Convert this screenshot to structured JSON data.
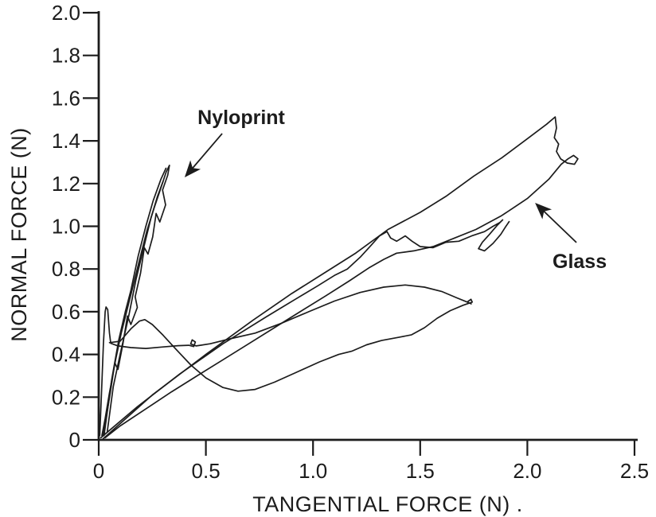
{
  "figure": {
    "description": "Scanned line plot of normal force versus tangential force for Nyloprint and Glass surfaces",
    "background_color": "#ffffff",
    "ink_color": "#1c1c1c"
  },
  "chart_data": {
    "type": "line",
    "title": "",
    "xlabel": "TANGENTIAL FORCE (N) .",
    "ylabel": "NORMAL FORCE (N)",
    "xlim": [
      0,
      2.5
    ],
    "ylim": [
      0,
      2.0
    ],
    "grid": false,
    "legend_position": "none (inline arrow annotations)",
    "x_ticks": [
      {
        "value": 0.0,
        "label": "0"
      },
      {
        "value": 0.5,
        "label": "0.5"
      },
      {
        "value": 1.0,
        "label": "1.0"
      },
      {
        "value": 1.5,
        "label": "1.5"
      },
      {
        "value": 2.0,
        "label": "2.0"
      },
      {
        "value": 2.5,
        "label": "2.5"
      }
    ],
    "y_ticks": [
      {
        "value": 0.0,
        "label": "0"
      },
      {
        "value": 0.2,
        "label": "0.2"
      },
      {
        "value": 0.4,
        "label": "0.4"
      },
      {
        "value": 0.6,
        "label": "0.6"
      },
      {
        "value": 0.8,
        "label": "0.8"
      },
      {
        "value": 1.0,
        "label": "1.0"
      },
      {
        "value": 1.2,
        "label": "1.2"
      },
      {
        "value": 1.4,
        "label": "1.4"
      },
      {
        "value": 1.6,
        "label": "1.6"
      },
      {
        "value": 1.8,
        "label": "1.8"
      },
      {
        "value": 2.0,
        "label": "2.0"
      }
    ],
    "annotations": [
      {
        "text": "Nyloprint",
        "text_x": 0.665,
        "text_y": 1.512,
        "arrow_from_x": 0.576,
        "arrow_from_y": 1.434,
        "arrow_to_x": 0.401,
        "arrow_to_y": 1.229
      },
      {
        "text": "Glass",
        "text_x": 2.244,
        "text_y": 0.838,
        "arrow_from_x": 2.229,
        "arrow_from_y": 0.924,
        "arrow_to_x": 2.036,
        "arrow_to_y": 1.11
      }
    ],
    "series": [
      {
        "name": "nyloprint-strand-1",
        "surface": "Nyloprint",
        "points": [
          [
            0.015,
            0.02
          ],
          [
            0.03,
            0.1
          ],
          [
            0.05,
            0.22
          ],
          [
            0.08,
            0.38
          ],
          [
            0.105,
            0.5
          ],
          [
            0.13,
            0.6
          ],
          [
            0.16,
            0.72
          ],
          [
            0.19,
            0.84
          ],
          [
            0.225,
            0.98
          ],
          [
            0.26,
            1.09
          ],
          [
            0.29,
            1.18
          ],
          [
            0.315,
            1.255
          ],
          [
            0.33,
            1.285
          ]
        ]
      },
      {
        "name": "nyloprint-strand-2",
        "surface": "Nyloprint",
        "points": [
          [
            0.33,
            1.285
          ],
          [
            0.322,
            1.24
          ],
          [
            0.298,
            1.17
          ],
          [
            0.312,
            1.1
          ],
          [
            0.285,
            1.02
          ],
          [
            0.268,
            1.06
          ],
          [
            0.252,
            0.95
          ],
          [
            0.23,
            0.87
          ],
          [
            0.213,
            0.9
          ],
          [
            0.195,
            0.78
          ],
          [
            0.17,
            0.67
          ],
          [
            0.18,
            0.62
          ],
          [
            0.15,
            0.54
          ],
          [
            0.134,
            0.58
          ],
          [
            0.113,
            0.45
          ],
          [
            0.09,
            0.33
          ],
          [
            0.075,
            0.36
          ],
          [
            0.054,
            0.22
          ],
          [
            0.034,
            0.1
          ],
          [
            0.02,
            0.02
          ]
        ]
      },
      {
        "name": "nyloprint-strand-3",
        "surface": "Nyloprint",
        "points": [
          [
            0.025,
            0.02
          ],
          [
            0.06,
            0.28
          ],
          [
            0.094,
            0.47
          ],
          [
            0.124,
            0.6
          ],
          [
            0.15,
            0.7
          ],
          [
            0.184,
            0.86
          ],
          [
            0.22,
            1.0
          ],
          [
            0.254,
            1.12
          ],
          [
            0.29,
            1.22
          ],
          [
            0.314,
            1.272
          ]
        ]
      },
      {
        "name": "nyloprint-strand-4",
        "surface": "Nyloprint",
        "points": [
          [
            0.04,
            0.04
          ],
          [
            0.068,
            0.25
          ],
          [
            0.1,
            0.4
          ],
          [
            0.14,
            0.58
          ],
          [
            0.174,
            0.75
          ],
          [
            0.21,
            0.9
          ],
          [
            0.244,
            1.04
          ],
          [
            0.274,
            1.14
          ],
          [
            0.3,
            1.21
          ]
        ]
      },
      {
        "name": "glass-spike-plateau",
        "surface": "Glass",
        "points": [
          [
            0.005,
            0.02
          ],
          [
            0.013,
            0.22
          ],
          [
            0.022,
            0.45
          ],
          [
            0.03,
            0.6
          ],
          [
            0.034,
            0.622
          ],
          [
            0.042,
            0.61
          ],
          [
            0.05,
            0.5
          ],
          [
            0.056,
            0.452
          ],
          [
            0.09,
            0.44
          ],
          [
            0.15,
            0.432
          ],
          [
            0.22,
            0.428
          ],
          [
            0.3,
            0.435
          ],
          [
            0.37,
            0.441
          ],
          [
            0.42,
            0.443
          ],
          [
            0.443,
            0.437
          ],
          [
            0.451,
            0.458
          ],
          [
            0.436,
            0.468
          ],
          [
            0.429,
            0.449
          ],
          [
            0.455,
            0.44
          ],
          [
            0.52,
            0.45
          ],
          [
            0.62,
            0.475
          ],
          [
            0.73,
            0.5
          ],
          [
            0.85,
            0.545
          ],
          [
            0.98,
            0.6
          ],
          [
            1.1,
            0.65
          ],
          [
            1.22,
            0.69
          ],
          [
            1.33,
            0.715
          ],
          [
            1.43,
            0.725
          ],
          [
            1.52,
            0.715
          ],
          [
            1.6,
            0.695
          ],
          [
            1.67,
            0.665
          ],
          [
            1.72,
            0.645
          ],
          [
            1.738,
            0.637
          ]
        ]
      },
      {
        "name": "glass-dome-return",
        "surface": "Glass",
        "points": [
          [
            0.05,
            0.455
          ],
          [
            0.1,
            0.462
          ],
          [
            0.15,
            0.52
          ],
          [
            0.19,
            0.556
          ],
          [
            0.215,
            0.563
          ],
          [
            0.25,
            0.54
          ],
          [
            0.3,
            0.49
          ],
          [
            0.36,
            0.425
          ],
          [
            0.43,
            0.35
          ],
          [
            0.5,
            0.29
          ],
          [
            0.58,
            0.245
          ],
          [
            0.65,
            0.228
          ],
          [
            0.73,
            0.236
          ],
          [
            0.82,
            0.27
          ],
          [
            0.92,
            0.315
          ],
          [
            1.03,
            0.365
          ],
          [
            1.12,
            0.4
          ],
          [
            1.18,
            0.415
          ],
          [
            1.25,
            0.445
          ],
          [
            1.32,
            0.465
          ],
          [
            1.4,
            0.48
          ],
          [
            1.46,
            0.492
          ],
          [
            1.52,
            0.525
          ],
          [
            1.58,
            0.57
          ],
          [
            1.64,
            0.605
          ],
          [
            1.7,
            0.63
          ],
          [
            1.743,
            0.645
          ],
          [
            1.737,
            0.658
          ],
          [
            1.723,
            0.648
          ]
        ]
      },
      {
        "name": "glass-wiggle-load",
        "surface": "Glass",
        "points": [
          [
            0.01,
            0.01
          ],
          [
            0.18,
            0.155
          ],
          [
            0.38,
            0.31
          ],
          [
            0.58,
            0.45
          ],
          [
            0.78,
            0.575
          ],
          [
            0.92,
            0.66
          ],
          [
            1.02,
            0.72
          ],
          [
            1.1,
            0.77
          ],
          [
            1.16,
            0.8
          ],
          [
            1.22,
            0.855
          ],
          [
            1.27,
            0.91
          ],
          [
            1.31,
            0.955
          ],
          [
            1.345,
            0.975
          ],
          [
            1.362,
            0.945
          ],
          [
            1.39,
            0.93
          ],
          [
            1.43,
            0.955
          ],
          [
            1.462,
            0.93
          ],
          [
            1.5,
            0.905
          ],
          [
            1.56,
            0.9
          ],
          [
            1.62,
            0.925
          ],
          [
            1.68,
            0.93
          ],
          [
            1.74,
            0.955
          ],
          [
            1.8,
            0.975
          ],
          [
            1.84,
            1.0
          ],
          [
            1.872,
            1.018
          ],
          [
            1.885,
            1.03
          ],
          [
            1.858,
            1.003
          ],
          [
            1.824,
            0.963
          ],
          [
            1.79,
            0.925
          ],
          [
            1.772,
            0.895
          ],
          [
            1.8,
            0.885
          ],
          [
            1.84,
            0.92
          ],
          [
            1.876,
            0.962
          ],
          [
            1.9,
            1.0
          ],
          [
            1.915,
            1.022
          ]
        ]
      },
      {
        "name": "glass-big-loop",
        "surface": "Glass",
        "points": [
          [
            0.02,
            0.005
          ],
          [
            0.25,
            0.21
          ],
          [
            0.5,
            0.4
          ],
          [
            0.72,
            0.56
          ],
          [
            0.9,
            0.685
          ],
          [
            1.05,
            0.78
          ],
          [
            1.2,
            0.875
          ],
          [
            1.35,
            0.985
          ],
          [
            1.5,
            1.065
          ],
          [
            1.62,
            1.14
          ],
          [
            1.75,
            1.235
          ],
          [
            1.88,
            1.32
          ],
          [
            2.0,
            1.41
          ],
          [
            2.09,
            1.478
          ],
          [
            2.13,
            1.512
          ],
          [
            2.136,
            1.46
          ],
          [
            2.126,
            1.415
          ],
          [
            2.146,
            1.385
          ],
          [
            2.136,
            1.35
          ],
          [
            2.156,
            1.315
          ],
          [
            2.186,
            1.296
          ],
          [
            2.22,
            1.29
          ],
          [
            2.236,
            1.316
          ],
          [
            2.216,
            1.332
          ],
          [
            2.19,
            1.316
          ],
          [
            2.158,
            1.29
          ],
          [
            2.1,
            1.22
          ],
          [
            2.0,
            1.13
          ],
          [
            1.88,
            1.05
          ],
          [
            1.76,
            0.985
          ],
          [
            1.66,
            0.945
          ],
          [
            1.56,
            0.905
          ],
          [
            1.47,
            0.885
          ],
          [
            1.39,
            0.874
          ],
          [
            1.33,
            0.845
          ],
          [
            1.26,
            0.805
          ],
          [
            1.17,
            0.745
          ],
          [
            1.06,
            0.675
          ],
          [
            0.94,
            0.6
          ],
          [
            0.82,
            0.525
          ],
          [
            0.7,
            0.45
          ],
          [
            0.58,
            0.375
          ],
          [
            0.46,
            0.3
          ],
          [
            0.34,
            0.225
          ],
          [
            0.22,
            0.145
          ],
          [
            0.1,
            0.065
          ],
          [
            0.03,
            0.01
          ]
        ]
      }
    ]
  }
}
